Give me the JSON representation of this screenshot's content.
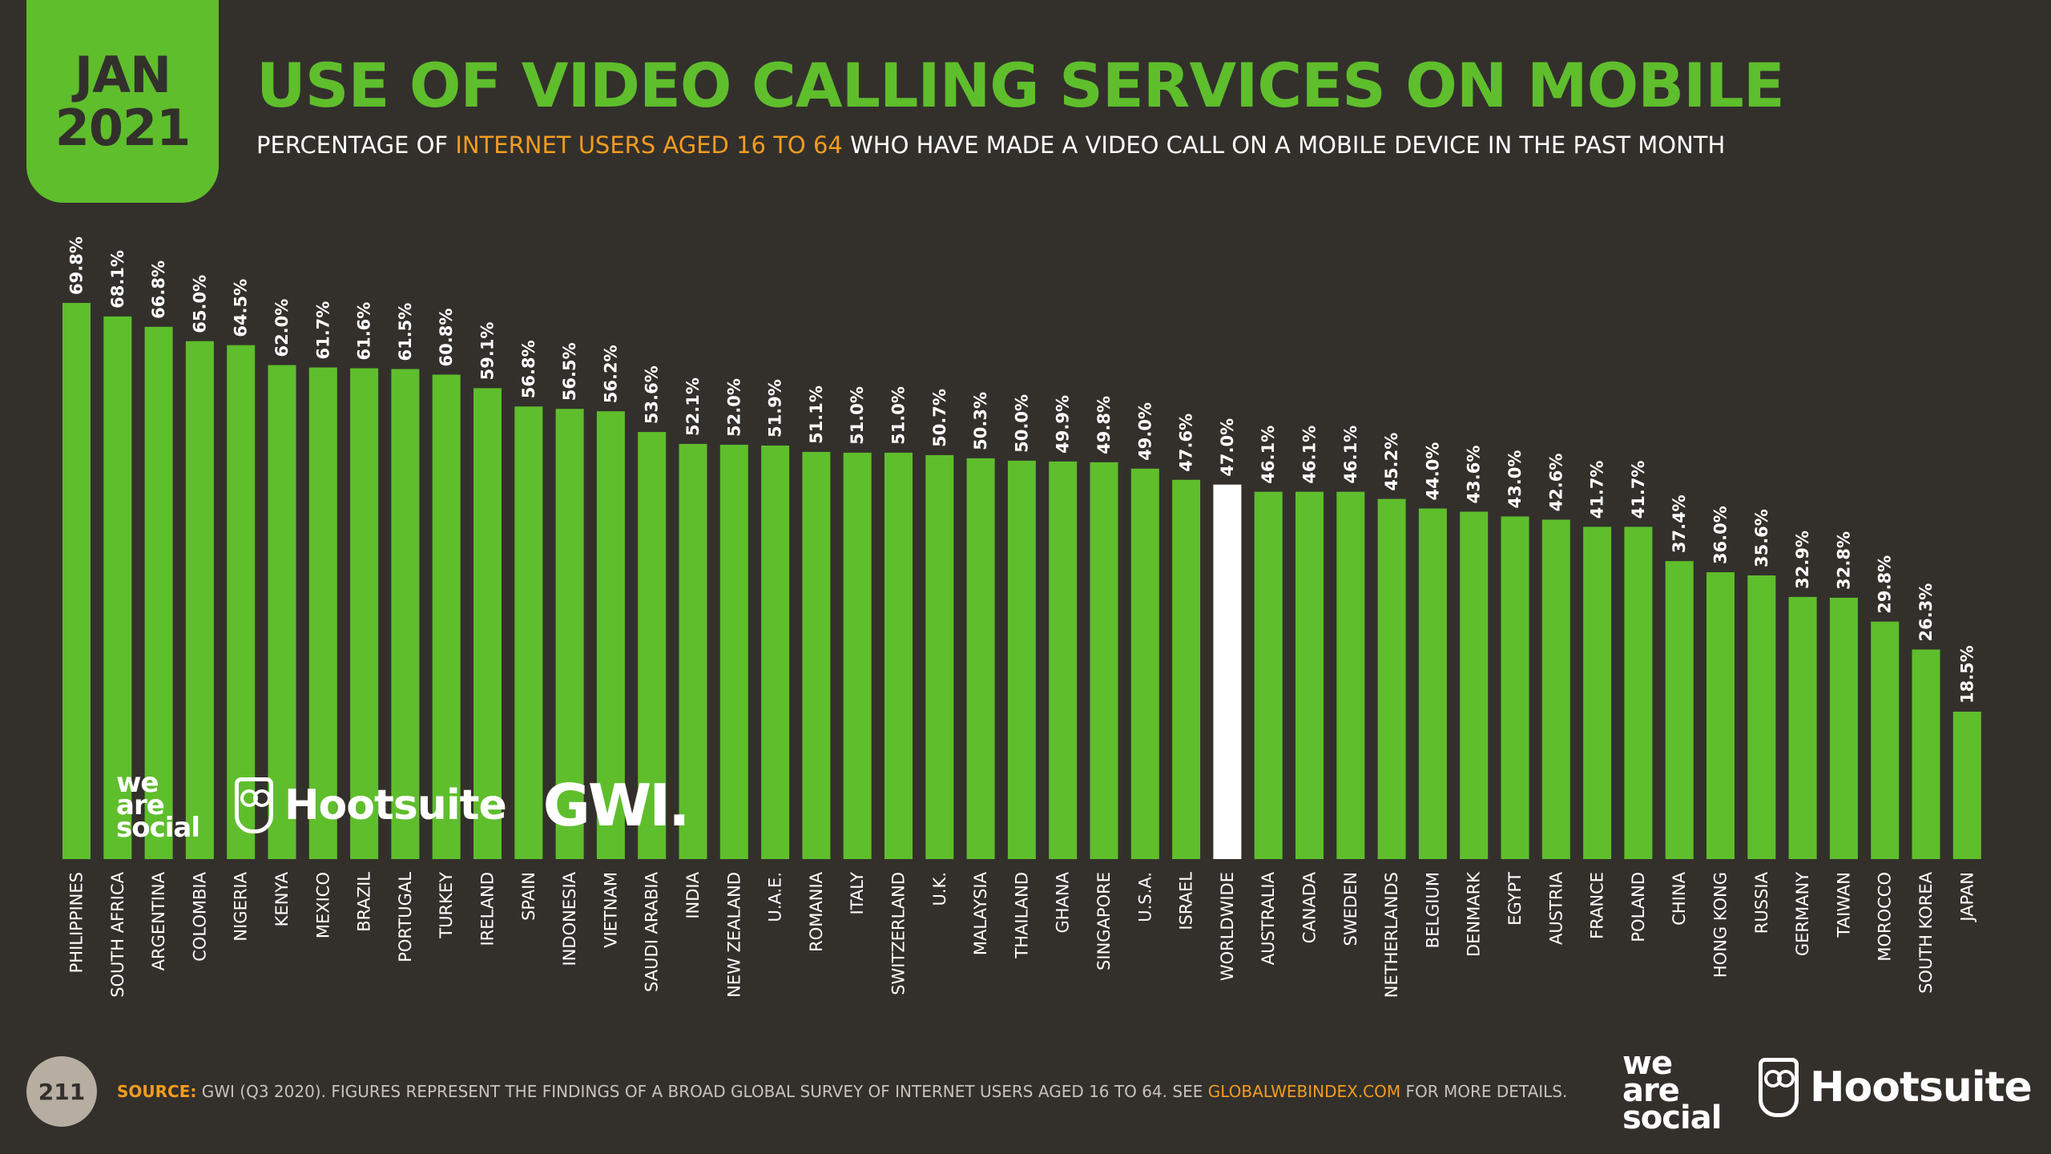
{
  "badge": {
    "month": "JAN",
    "year": "2021"
  },
  "title": "USE OF VIDEO CALLING SERVICES ON MOBILE",
  "subtitle": {
    "part1": "PERCENTAGE OF ",
    "highlight": "INTERNET USERS AGED 16 TO 64",
    "part2": " WHO HAVE MADE A VIDEO CALL ON A MOBILE DEVICE IN THE PAST MONTH"
  },
  "colors": {
    "bar": "#5fbe2c",
    "highlight_bar": "#ffffff",
    "background": "#33302c",
    "accent": "#f39c1f"
  },
  "chart_data": {
    "type": "bar",
    "categories": [
      "PHILIPPINES",
      "SOUTH AFRICA",
      "ARGENTINA",
      "COLOMBIA",
      "NIGERIA",
      "KENYA",
      "MEXICO",
      "BRAZIL",
      "PORTUGAL",
      "TURKEY",
      "IRELAND",
      "SPAIN",
      "INDONESIA",
      "VIETNAM",
      "SAUDI ARABIA",
      "INDIA",
      "NEW ZEALAND",
      "U.A.E.",
      "ROMANIA",
      "ITALY",
      "SWITZERLAND",
      "U.K.",
      "MALAYSIA",
      "THAILAND",
      "GHANA",
      "SINGAPORE",
      "U.S.A.",
      "ISRAEL",
      "WORLDWIDE",
      "AUSTRALIA",
      "CANADA",
      "SWEDEN",
      "NETHERLANDS",
      "BELGIUM",
      "DENMARK",
      "EGYPT",
      "AUSTRIA",
      "FRANCE",
      "POLAND",
      "CHINA",
      "HONG KONG",
      "RUSSIA",
      "GERMANY",
      "TAIWAN",
      "MOROCCO",
      "SOUTH KOREA",
      "JAPAN"
    ],
    "values": [
      69.8,
      68.1,
      66.8,
      65.0,
      64.5,
      62.0,
      61.7,
      61.6,
      61.5,
      60.8,
      59.1,
      56.8,
      56.5,
      56.2,
      53.6,
      52.1,
      52.0,
      51.9,
      51.1,
      51.0,
      51.0,
      50.7,
      50.3,
      50.0,
      49.9,
      49.8,
      49.0,
      47.6,
      47.0,
      46.1,
      46.1,
      46.1,
      45.2,
      44.0,
      43.6,
      43.0,
      42.6,
      41.7,
      41.7,
      37.4,
      36.0,
      35.6,
      32.9,
      32.8,
      29.8,
      26.3,
      18.5
    ],
    "labels": [
      "69.8%",
      "68.1%",
      "66.8%",
      "65.0%",
      "64.5%",
      "62.0%",
      "61.7%",
      "61.6%",
      "61.5%",
      "60.8%",
      "59.1%",
      "56.8%",
      "56.5%",
      "56.2%",
      "53.6%",
      "52.1%",
      "52.0%",
      "51.9%",
      "51.1%",
      "51.0%",
      "51.0%",
      "50.7%",
      "50.3%",
      "50.0%",
      "49.9%",
      "49.8%",
      "49.0%",
      "47.6%",
      "47.0%",
      "46.1%",
      "46.1%",
      "46.1%",
      "45.2%",
      "44.0%",
      "43.6%",
      "43.0%",
      "42.6%",
      "41.7%",
      "41.7%",
      "37.4%",
      "36.0%",
      "35.6%",
      "32.9%",
      "32.8%",
      "29.8%",
      "26.3%",
      "18.5%"
    ],
    "highlight_category": "WORLDWIDE",
    "ylim": [
      0,
      70
    ],
    "grid": false,
    "legend": "none"
  },
  "logos": {
    "was": [
      "we",
      "are",
      "social"
    ],
    "hootsuite": "Hootsuite",
    "gwi": "GWI."
  },
  "footer": {
    "page": "211",
    "source_label": "SOURCE:",
    "source_text": " GWI (Q3 2020). FIGURES REPRESENT THE FINDINGS OF A BROAD GLOBAL SURVEY OF INTERNET USERS AGED 16 TO 64. SEE ",
    "source_url": "GLOBALWEBINDEX.COM",
    "source_end": " FOR MORE DETAILS."
  }
}
